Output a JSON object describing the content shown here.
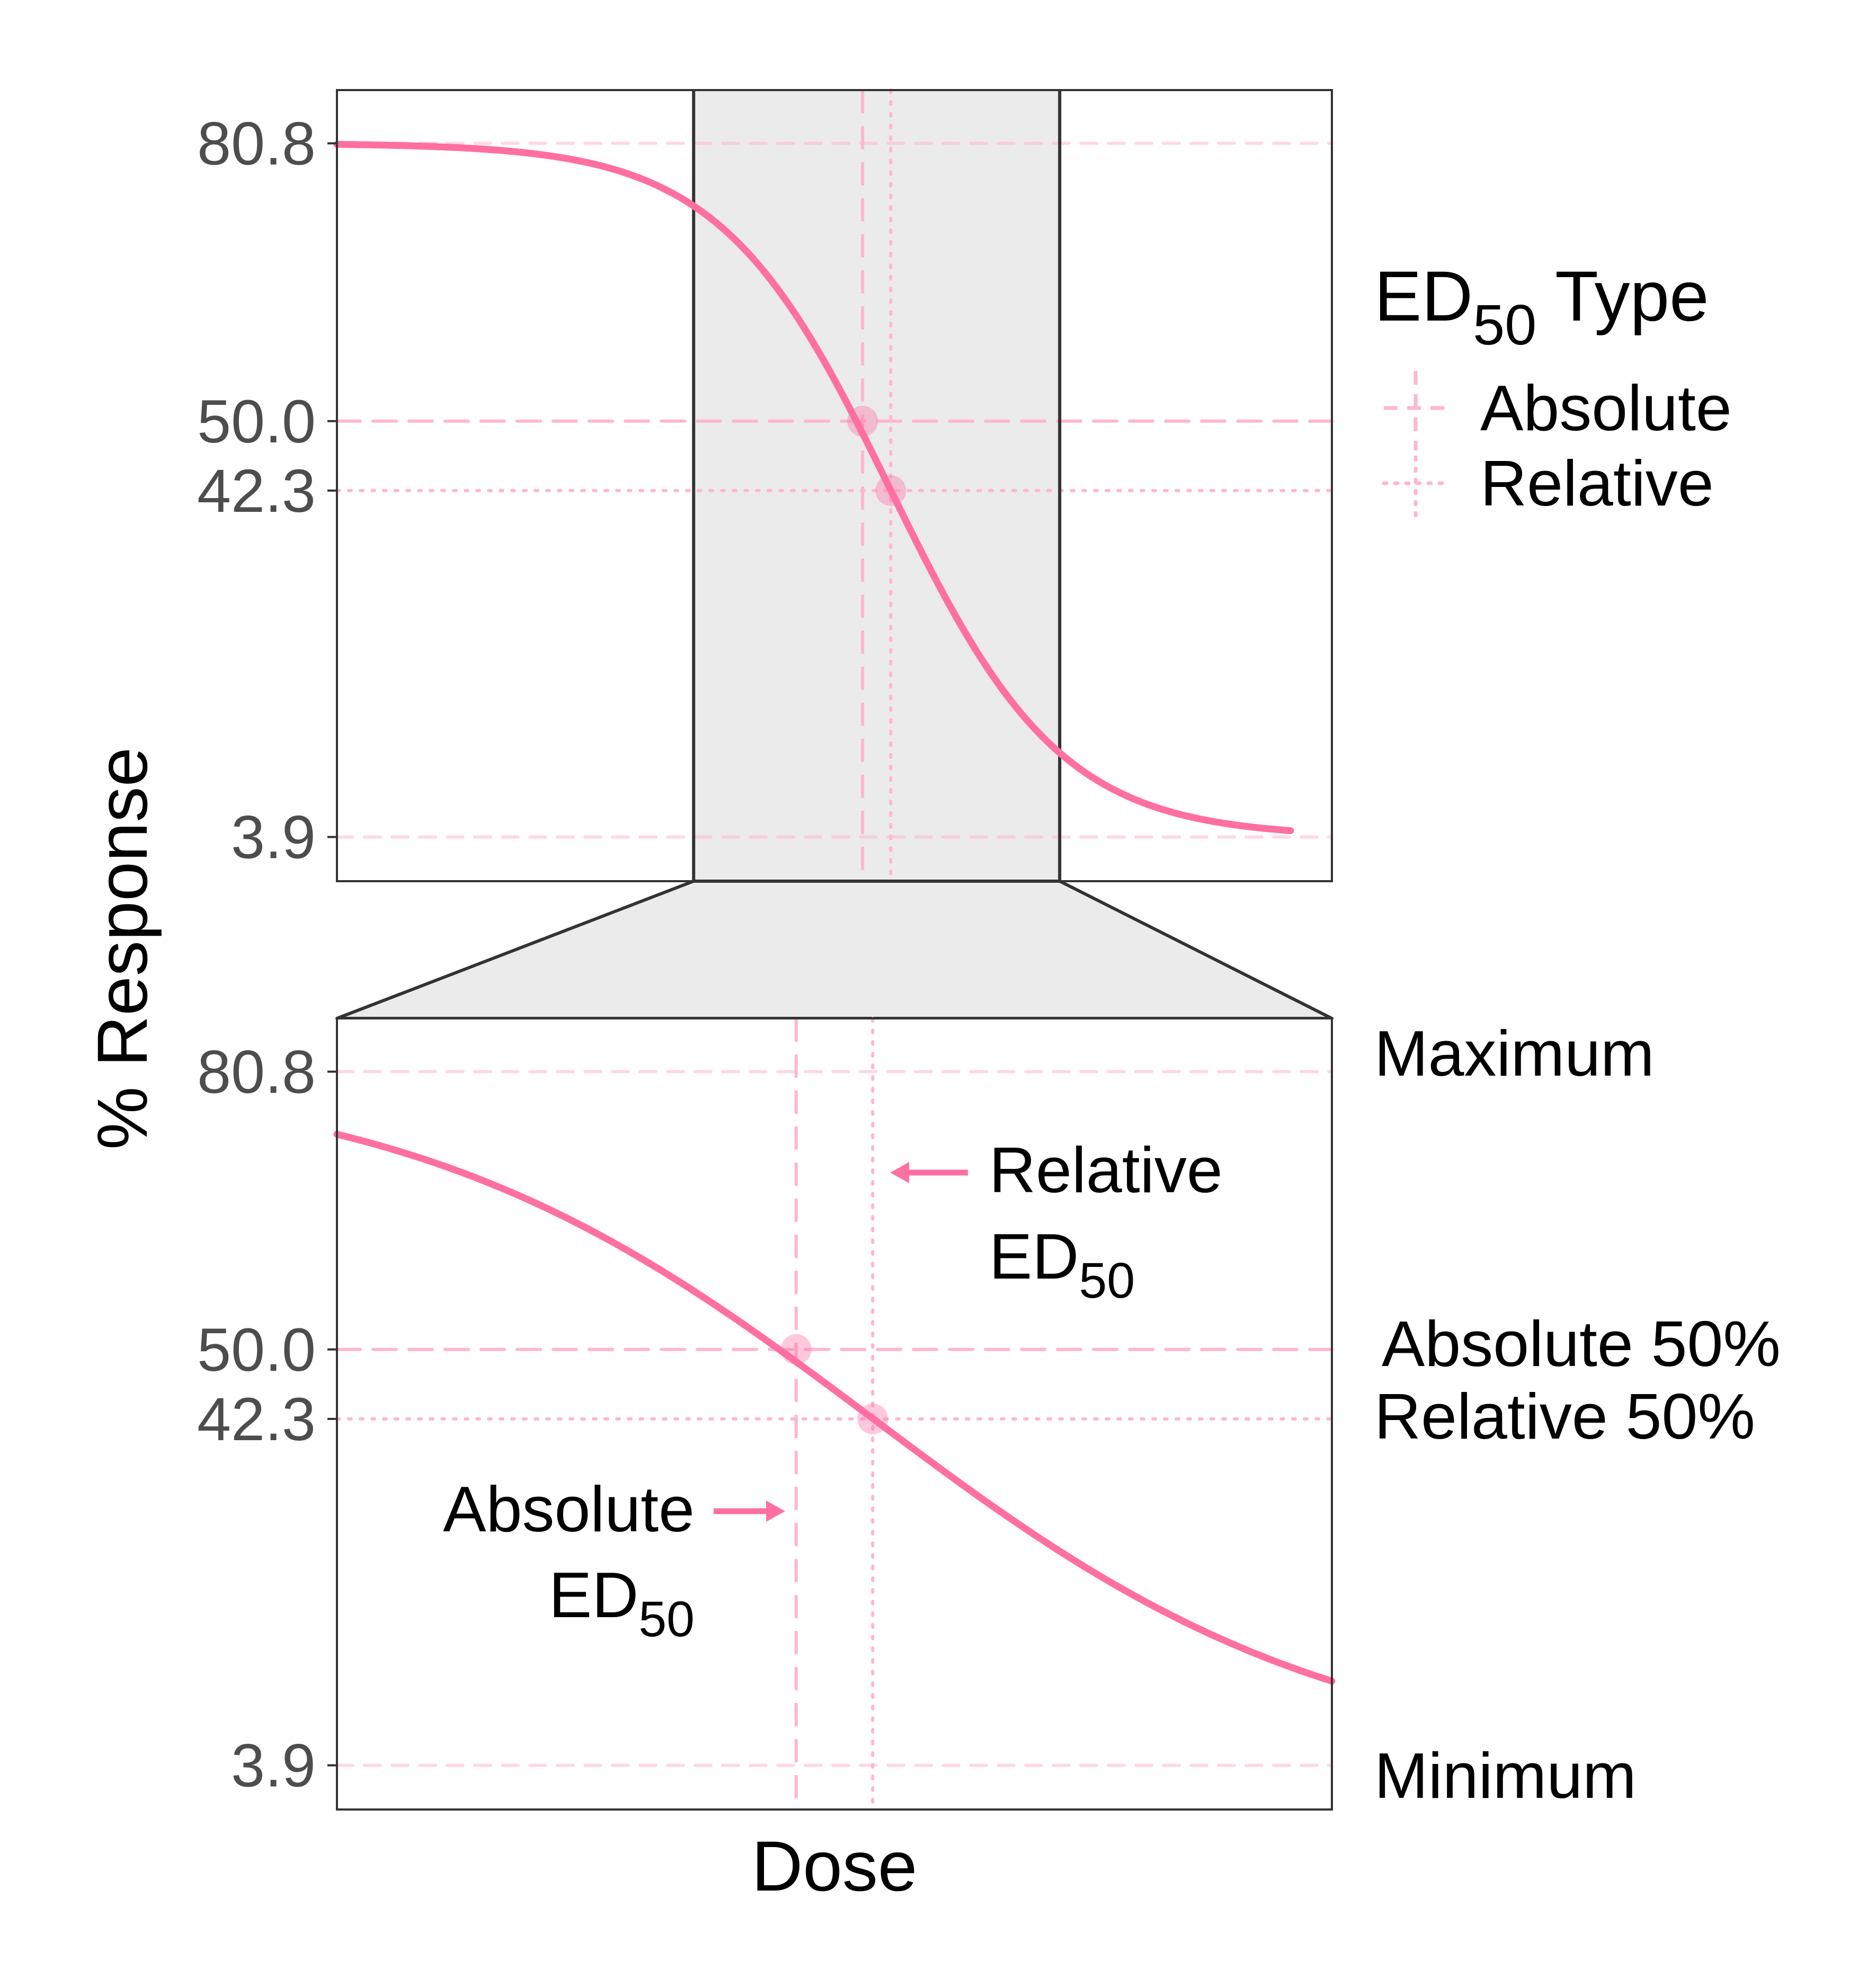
{
  "chart_data": {
    "type": "line",
    "xlabel": "Dose",
    "ylabel": "% Response",
    "ylim": [
      -1.0,
      86.7
    ],
    "grid": false,
    "yticks": [
      "80.8",
      "50.0",
      "42.3",
      "3.9"
    ],
    "ytick_values": [
      80.8,
      50.0,
      42.3,
      3.9
    ],
    "reference_levels": {
      "maximum": 80.8,
      "absolute_50": 50.0,
      "relative_50": 42.3,
      "minimum": 3.9
    },
    "curve": {
      "top": 80.8,
      "bottom": 3.9,
      "hill_slope": 2.2,
      "ed50_relative": 0.15
    },
    "ed50": {
      "absolute": 0.0,
      "relative": 0.15
    },
    "top_panel": {
      "xlim": [
        -2.8,
        2.5
      ],
      "zoom_range": [
        -0.9,
        1.05
      ]
    },
    "bottom_panel": {
      "xlim": [
        -0.9,
        1.05
      ]
    },
    "colors": {
      "curve": "#ff6fa2",
      "reference": "#ffb6cf",
      "zoom_fill": "#ebebeb",
      "frame": "#333333"
    },
    "legend": {
      "title_main": "ED",
      "title_sub": "50",
      "title_rest": " Type",
      "items": [
        {
          "label": "Absolute",
          "linetype": "dashed"
        },
        {
          "label": "Relative",
          "linetype": "dotted"
        }
      ],
      "position": "right"
    },
    "side_labels": {
      "maximum": "Maximum",
      "absolute_50": "Absolute 50%",
      "relative_50": "Relative 50%",
      "minimum": "Minimum"
    },
    "annotations": {
      "relative": {
        "line1": "Relative",
        "line2_main": "ED",
        "line2_sub": "50"
      },
      "absolute": {
        "line1": "Absolute",
        "line2_main": "ED",
        "line2_sub": "50"
      }
    }
  }
}
